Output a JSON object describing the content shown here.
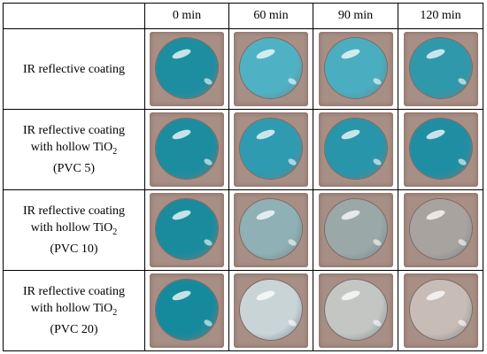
{
  "header": {
    "corner": "",
    "times": [
      "0 min",
      "60 min",
      "90 min",
      "120 min"
    ]
  },
  "rows": [
    {
      "label_lines": [
        "IR reflective coating"
      ],
      "sub": "",
      "tail": "",
      "drops": [
        "#1c8ea0",
        "#4fb2c4",
        "#4aaec0",
        "#2f98ab"
      ]
    },
    {
      "label_lines": [
        "IR reflective coating",
        "with hollow TiO"
      ],
      "sub": "2",
      "tail": "(PVC 5)",
      "drops": [
        "#1b8d9f",
        "#2f9bb0",
        "#2895aa",
        "#1f8ea3"
      ]
    },
    {
      "label_lines": [
        "IR reflective coating",
        "with hollow TiO"
      ],
      "sub": "2",
      "tail": "(PVC 10)",
      "drops": [
        "#1a8b9c",
        "#8fb0b4",
        "#9aa8a8",
        "#a9a3a0"
      ]
    },
    {
      "label_lines": [
        "IR reflective coating",
        "with hollow TiO"
      ],
      "sub": "2",
      "tail": "(PVC 20)",
      "drops": [
        "#168a9d",
        "#c9d4d6",
        "#c4c6c4",
        "#c8bcb6"
      ]
    }
  ],
  "colors": {
    "background_tile": "#a88f86",
    "drop_rim": "#6f7f85"
  }
}
